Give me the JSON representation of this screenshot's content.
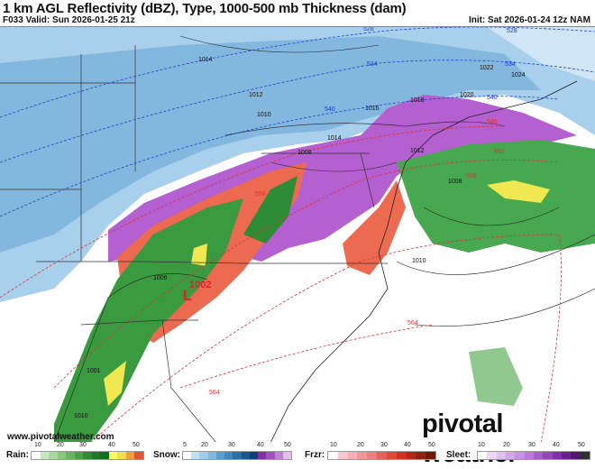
{
  "header": {
    "title": "1 km AGL Reflectivity (dBZ), Type, 1000-500 mb Thickness (dam)",
    "valid": "F033 Valid: Sun 2026-01-25 21z",
    "init": "Init: Sat 2026-01-24 12z NAM"
  },
  "map": {
    "low_pressure": {
      "value": "1002",
      "symbol": "L"
    },
    "pressure_labels": [
      "1014",
      "1012",
      "1010",
      "1016",
      "1018",
      "1020",
      "1022",
      "1024",
      "1014",
      "1012",
      "1008",
      "1010",
      "1006",
      "1001",
      "1010",
      "1008"
    ],
    "thickness_labels_blue": [
      "528",
      "528",
      "534",
      "534",
      "540",
      "540"
    ],
    "thickness_labels_red": [
      "546",
      "552",
      "558",
      "558",
      "564",
      "564"
    ],
    "watermark_url": "www.pivotalweather.com",
    "brand": "pivotal weather"
  },
  "legend": {
    "rain": {
      "label": "Rain:",
      "ticks": [
        "10",
        "20",
        "30",
        "40",
        "50"
      ],
      "colors": [
        "#ffffff",
        "#c8e6c0",
        "#a8d8a0",
        "#88c880",
        "#68b460",
        "#4ca048",
        "#2e8c34",
        "#1e7a28",
        "#137020",
        "#ffff60",
        "#f0e050",
        "#f0a040",
        "#e85030"
      ]
    },
    "snow": {
      "label": "Snow:",
      "ticks": [
        "5",
        "20",
        "30",
        "40",
        "50"
      ],
      "colors": [
        "#ffffff",
        "#c0e0f4",
        "#a0ccec",
        "#80b8e0",
        "#5ca0d0",
        "#4088c0",
        "#2c70a8",
        "#1c5890",
        "#104078",
        "#8030a0",
        "#a050b8",
        "#c080d0",
        "#e0c0e8"
      ]
    },
    "frzr": {
      "label": "Frzr:",
      "ticks": [
        "10",
        "20",
        "30",
        "40",
        "50"
      ],
      "colors": [
        "#ffffff",
        "#f8c8d0",
        "#f4b0b8",
        "#f09898",
        "#ec8080",
        "#e86060",
        "#e04838",
        "#d03020",
        "#b02818",
        "#902010",
        "#701808"
      ]
    },
    "sleet": {
      "label": "Sleet:",
      "ticks": [
        "10",
        "20",
        "30",
        "40",
        "50"
      ],
      "colors": [
        "#ffffff",
        "#ecd8f4",
        "#e0c0f0",
        "#d4a8e8",
        "#c890e0",
        "#bc78d8",
        "#a860c8",
        "#9448b8",
        "#8030a8",
        "#6c2090",
        "#501870",
        "#303030"
      ]
    }
  }
}
